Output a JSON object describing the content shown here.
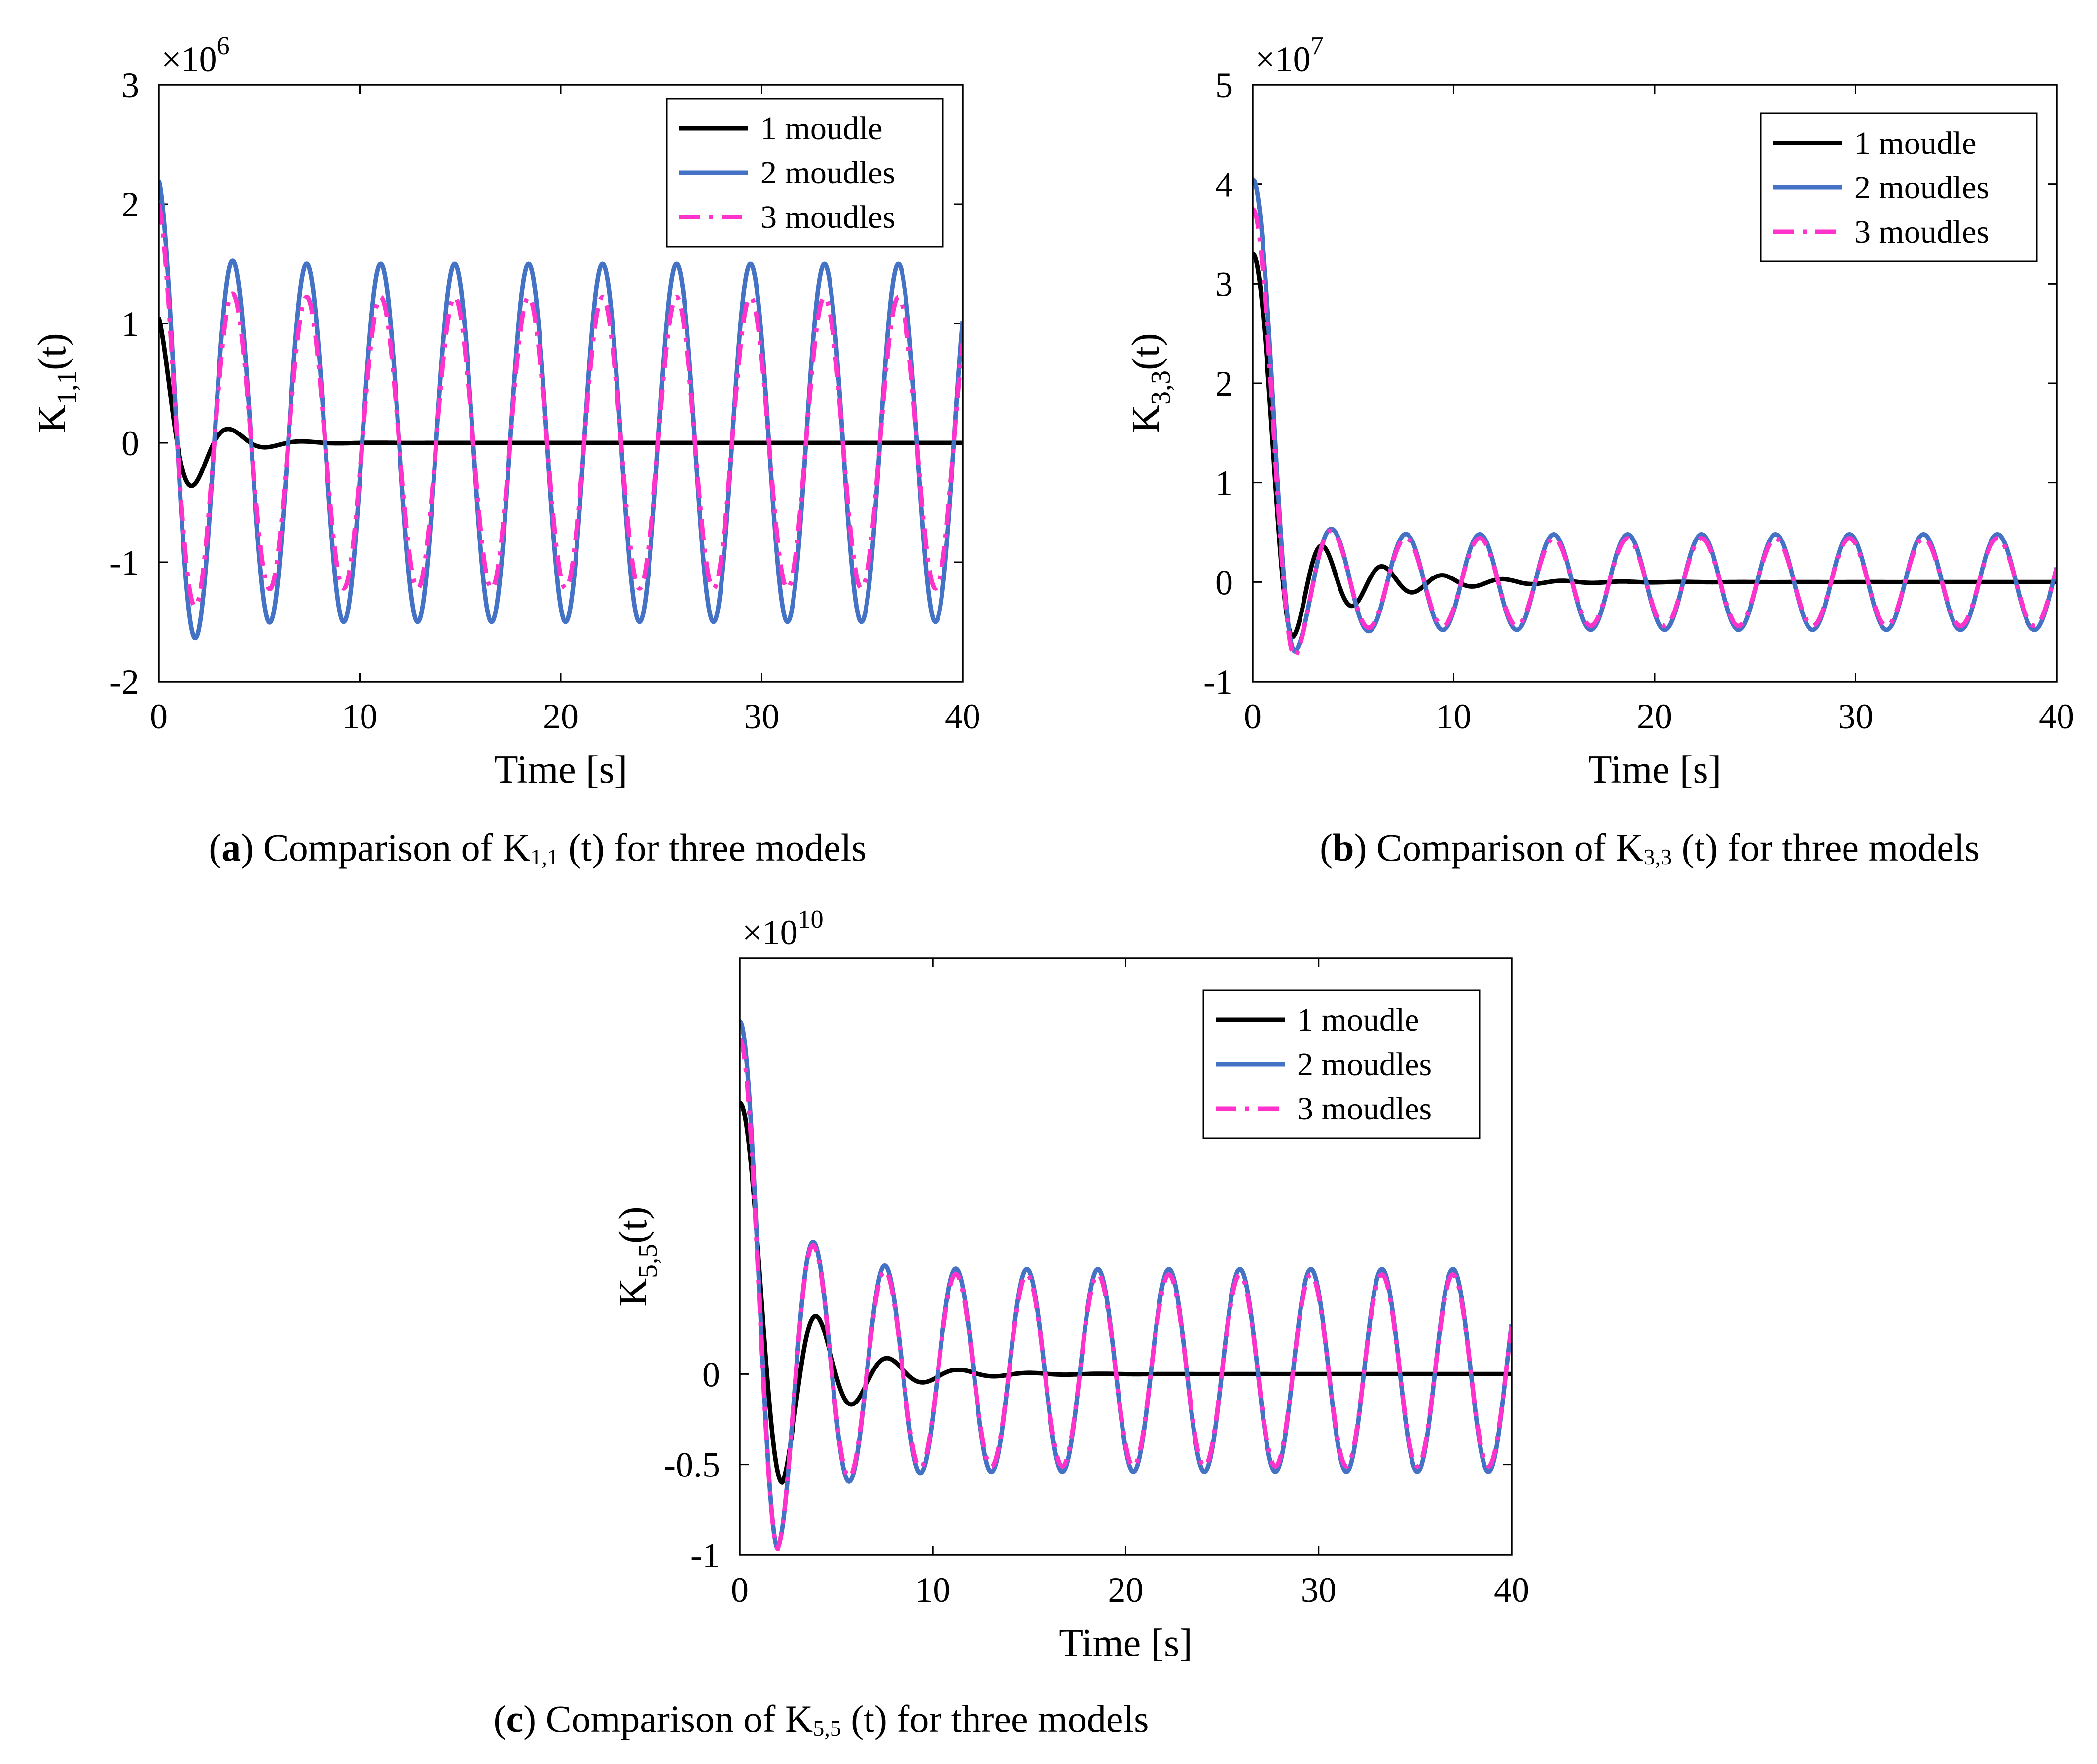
{
  "chart_data": [
    {
      "type": "line",
      "panel": "a",
      "xlabel": "Time [s]",
      "ylabel": "K",
      "ylabel_sub": "1,1",
      "ylabel_tail": "(t)",
      "multiplier": "×10",
      "multiplier_exp": "6",
      "xlim": [
        0,
        40
      ],
      "ylim": [
        -2,
        3
      ],
      "xticks": [
        0,
        10,
        20,
        30,
        40
      ],
      "yticks": [
        -2,
        -1,
        0,
        1,
        2,
        3
      ],
      "legend_position": "top-right",
      "caption_letter": "a",
      "caption_pre": "Comparison of K",
      "caption_sub": "1,1",
      "caption_post": "(t) for three models",
      "series": [
        {
          "name": "1 moudle",
          "color": "#000000",
          "dash": "solid",
          "model": {
            "kind": "damped",
            "a0": 1.05,
            "omega": 1.72,
            "gamma": 0.62,
            "offset": 0,
            "period": 3.68,
            "amp_ss": 0
          }
        },
        {
          "name": "2 moudles",
          "color": "#4472c4",
          "dash": "solid",
          "model": {
            "kind": "sustained",
            "a0": 2.2,
            "period": 3.68,
            "amp_ss": 1.5,
            "gamma": 0.9
          }
        },
        {
          "name": "3 moudles",
          "color": "#ff33cc",
          "dash": "dashdot",
          "model": {
            "kind": "sustained",
            "a0": 2.0,
            "period": 3.68,
            "amp_ss": 1.22,
            "gamma": 0.9
          }
        }
      ]
    },
    {
      "type": "line",
      "panel": "b",
      "xlabel": "Time [s]",
      "ylabel": "K",
      "ylabel_sub": "3,3",
      "ylabel_tail": "(t)",
      "multiplier": "×10",
      "multiplier_exp": "7",
      "xlim": [
        0,
        40
      ],
      "ylim": [
        -1,
        5
      ],
      "xticks": [
        0,
        10,
        20,
        30,
        40
      ],
      "yticks": [
        -1,
        0,
        1,
        2,
        3,
        4,
        5
      ],
      "legend_position": "top-right",
      "caption_letter": "b",
      "caption_pre": "Comparison of K",
      "caption_sub": "3,3",
      "caption_post": "(t) for three models",
      "series": [
        {
          "name": "1 moudle",
          "color": "#000000",
          "dash": "solid",
          "model": {
            "kind": "step",
            "a0": 3.3,
            "dip": -0.55,
            "tdrop": 2.0,
            "omega": 2.1,
            "gamma": 0.28,
            "period": 3.68,
            "amp_ss": 0
          }
        },
        {
          "name": "2 moudles",
          "color": "#4472c4",
          "dash": "solid",
          "model": {
            "kind": "step_sus",
            "a0": 4.05,
            "dip": -0.7,
            "tdrop": 2.1,
            "period": 3.68,
            "amp_ss": 0.48,
            "gamma": 0.35
          }
        },
        {
          "name": "3 moudles",
          "color": "#ff33cc",
          "dash": "dashdot",
          "model": {
            "kind": "step_sus",
            "a0": 3.75,
            "dip": -0.75,
            "tdrop": 2.1,
            "period": 3.68,
            "amp_ss": 0.44,
            "gamma": 0.35
          }
        }
      ]
    },
    {
      "type": "line",
      "panel": "c",
      "xlabel": "Time [s]",
      "ylabel": "K",
      "ylabel_sub": "5,5",
      "ylabel_tail": "(t)",
      "multiplier": "×10",
      "multiplier_exp": "10",
      "xlim": [
        0,
        40
      ],
      "ylim": [
        -1,
        2.3
      ],
      "xticks": [
        0,
        10,
        20,
        30,
        40
      ],
      "yticks": [
        -1,
        -0.5,
        0
      ],
      "ytick_labels": [
        "-1",
        "-0.5",
        "0"
      ],
      "legend_position": "top-right",
      "caption_letter": "c",
      "caption_pre": "Comparison of K",
      "caption_sub": "5,5",
      "caption_post": "(t) for three models",
      "series": [
        {
          "name": "1 moudle",
          "color": "#000000",
          "dash": "solid",
          "model": {
            "kind": "step",
            "a0": 1.5,
            "dip": -0.6,
            "tdrop": 2.2,
            "omega": 1.7,
            "gamma": 0.35,
            "period": 3.68,
            "amp_ss": 0
          }
        },
        {
          "name": "2 moudles",
          "color": "#4472c4",
          "dash": "solid",
          "model": {
            "kind": "step_sus",
            "a0": 1.95,
            "dip": -0.97,
            "tdrop": 2.0,
            "period": 3.68,
            "amp_ss": 0.56,
            "gamma": 0.25,
            "center": 0.02
          }
        },
        {
          "name": "3 moudles",
          "color": "#ff33cc",
          "dash": "dashdot",
          "model": {
            "kind": "step_sus",
            "a0": 1.85,
            "dip": -0.97,
            "tdrop": 2.0,
            "period": 3.68,
            "amp_ss": 0.53,
            "gamma": 0.25,
            "center": 0.02
          }
        }
      ]
    }
  ]
}
